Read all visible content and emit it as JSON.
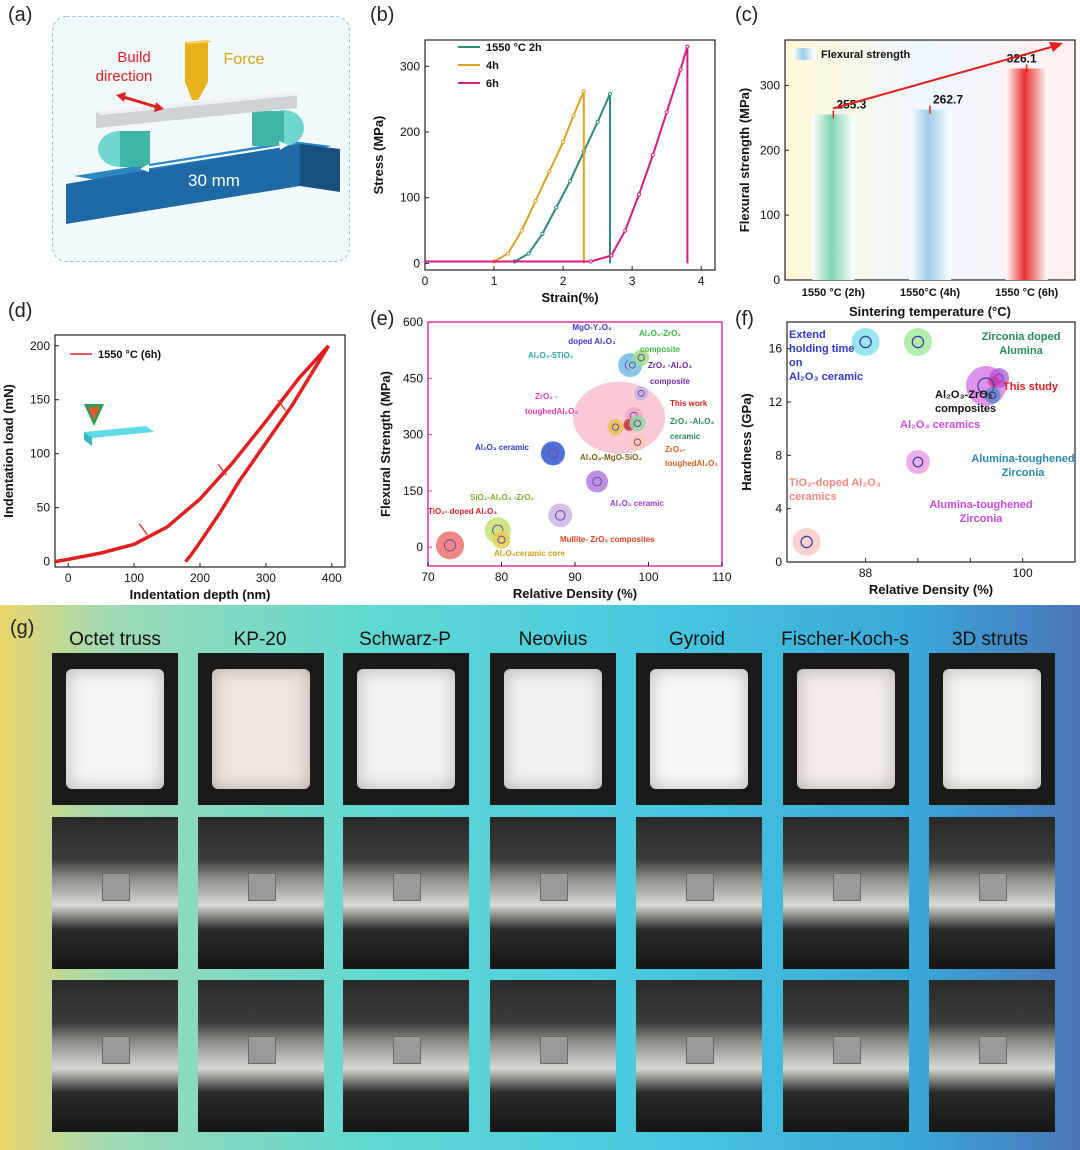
{
  "panel_labels": [
    "(a)",
    "(b)",
    "(c)",
    "(d)",
    "(e)",
    "(f)",
    "(g)"
  ],
  "panel_a": {
    "build_direction": [
      "Build",
      "direction"
    ],
    "force": "Force",
    "span": "30 mm"
  },
  "chart_data": [
    {
      "id": "b",
      "type": "line",
      "xlabel": "Strain(%)",
      "ylabel": "Stress (MPa)",
      "xlim": [
        0,
        4.2
      ],
      "ylim": [
        -10,
        340
      ],
      "xticks": [
        0,
        1,
        2,
        3,
        4
      ],
      "yticks": [
        0,
        100,
        200,
        300
      ],
      "series": [
        {
          "name": "1550 °C 2h",
          "color": "#2e8b7a",
          "x": [
            0,
            1.3,
            1.5,
            1.7,
            1.9,
            2.1,
            2.3,
            2.5,
            2.68,
            2.68
          ],
          "y": [
            3,
            3,
            15,
            45,
            85,
            125,
            170,
            215,
            258,
            0
          ]
        },
        {
          "name": "4h",
          "color": "#e0a020",
          "x": [
            0,
            1.0,
            1.2,
            1.4,
            1.6,
            1.8,
            2.0,
            2.15,
            2.3,
            2.3
          ],
          "y": [
            3,
            3,
            15,
            50,
            95,
            140,
            185,
            225,
            262,
            0
          ]
        },
        {
          "name": "6h",
          "color": "#d81b80",
          "x": [
            0,
            2.4,
            2.7,
            2.9,
            3.1,
            3.3,
            3.5,
            3.7,
            3.8,
            3.8
          ],
          "y": [
            3,
            3,
            12,
            50,
            105,
            165,
            230,
            295,
            330,
            0
          ]
        }
      ]
    },
    {
      "id": "c",
      "type": "bar",
      "legend": "Flexural strength",
      "xlabel": "Sintering temperature (°C)",
      "ylabel": "Flexural strength (MPa)",
      "categories": [
        "1550 °C (2h)",
        "1550°C (4h)",
        "1550 °C (6h)"
      ],
      "values": [
        255.3,
        262.7,
        326.1
      ],
      "value_labels": [
        "255.3",
        "262.7",
        "326.1"
      ],
      "ylim": [
        0,
        370
      ],
      "yticks": [
        0,
        100,
        200,
        300
      ],
      "colors": [
        "#7fd3b0",
        "#9ccde6",
        "#e8302c"
      ]
    },
    {
      "id": "d",
      "type": "line",
      "xlabel": "Indentation depth (nm)",
      "ylabel": "Indentation load (mN)",
      "legend": "1550 °C (6h)",
      "xlim": [
        -20,
        420
      ],
      "ylim": [
        -5,
        210
      ],
      "xticks": [
        0,
        100,
        200,
        300,
        400
      ],
      "yticks": [
        0,
        50,
        100,
        150,
        200
      ],
      "series": [
        {
          "name": "loading",
          "x": [
            -20,
            0,
            50,
            100,
            150,
            200,
            250,
            300,
            350,
            395
          ],
          "y": [
            0,
            2,
            8,
            16,
            32,
            58,
            92,
            130,
            170,
            200
          ]
        },
        {
          "name": "unloading",
          "x": [
            395,
            370,
            340,
            300,
            260,
            230,
            200,
            185,
            178
          ],
          "y": [
            200,
            175,
            145,
            110,
            75,
            45,
            18,
            5,
            0
          ]
        }
      ]
    },
    {
      "id": "e",
      "type": "scatter",
      "xlabel": "Relative Density (%)",
      "ylabel": "Flexural Strength (MPa)",
      "xlim": [
        70,
        110
      ],
      "ylim": [
        -50,
        600
      ],
      "xticks": [
        70,
        80,
        90,
        100,
        110
      ],
      "yticks": [
        0,
        150,
        300,
        450,
        600
      ],
      "points": [
        {
          "label": "MgO-Y2O3 doped Al2O3",
          "x": 97.5,
          "y": 485
        },
        {
          "label": "Al2O3-ZrO2 composite",
          "x": 99,
          "y": 505
        },
        {
          "label": "Al2O3-5TiO2",
          "x": 97.8,
          "y": 485
        },
        {
          "label": "ZrO2-Al2O3 composite",
          "x": 99,
          "y": 410
        },
        {
          "label": "ZrO2-toughed Al2O3",
          "x": 98,
          "y": 350
        },
        {
          "label": "This work",
          "x": 97.4,
          "y": 326
        },
        {
          "label": "ZrO2-Al2O3 ceramic",
          "x": 98.5,
          "y": 330
        },
        {
          "label": "ZrO2-toughed Al2O3",
          "x": 98.5,
          "y": 280
        },
        {
          "label": "Al2O3 ceramic",
          "x": 87,
          "y": 250
        },
        {
          "label": "Al2O3-MgO-SiO2",
          "x": 95.5,
          "y": 320
        },
        {
          "label": "Al2O3 ceramic",
          "x": 93,
          "y": 175
        },
        {
          "label": "SiO2-Al2O3-ZrO2",
          "x": 79.5,
          "y": 45
        },
        {
          "label": "Mullite-ZrO2 composites",
          "x": 88,
          "y": 85
        },
        {
          "label": "TiO2-doped Al2O3",
          "x": 73,
          "y": 5
        },
        {
          "label": "Al2O3 ceramic core",
          "x": 80,
          "y": 20
        }
      ]
    },
    {
      "id": "f",
      "type": "scatter",
      "xlabel": "Relative Density (%)",
      "ylabel": "Hardness (GPa)",
      "xlim": [
        82,
        104
      ],
      "ylim": [
        0,
        18
      ],
      "xticks": [
        88,
        92,
        96,
        100
      ],
      "xtick_labels": [
        "88",
        "",
        "",
        "100"
      ],
      "yticks": [
        0,
        4,
        8,
        12,
        16
      ],
      "points": [
        {
          "label": "Extend holding time on Al2O3 ceramic",
          "x": 88,
          "y": 16.5
        },
        {
          "label": "Al2O3-ZrO2 composites",
          "x": 92,
          "y": 16.5
        },
        {
          "label": "Zirconia doped Alumina",
          "x": 98.2,
          "y": 13.8
        },
        {
          "label": "This study",
          "x": 97.8,
          "y": 13.5
        },
        {
          "label": "Al2O3 ceramics",
          "x": 97.2,
          "y": 13.2
        },
        {
          "label": "Alumina-toughened Zirconia",
          "x": 97.7,
          "y": 12.5
        },
        {
          "label": "Alumina-toughened Zirconia",
          "x": 92,
          "y": 7.5
        },
        {
          "label": "TiO2-doped Al2O3 ceramics",
          "x": 83.5,
          "y": 1.5
        }
      ]
    }
  ],
  "panel_e_labels": {
    "mgo": [
      "MgO-Y₂O₃",
      "doped Al₂O₃"
    ],
    "alzr": [
      "Al₂O₃-ZrO₂",
      "composite"
    ],
    "al5ti": "Al₂O₃-5TiO₂",
    "zral": [
      "ZrO₂ -Al₂O₃",
      "composite"
    ],
    "zrt": [
      "ZrO₂ -",
      "toughedAl₂O₃"
    ],
    "thiswork": "This work",
    "zralc": [
      "ZrO₂ -Al₂O₃",
      "ceramic"
    ],
    "zrt2": [
      "ZrO₂-",
      "toughedAl₂O₃"
    ],
    "alcer": "Al₂O₃ ceramic",
    "almg": "Al₂O₃-MgO-SiO₂",
    "alcer2": "Al₂O₃ ceramic",
    "sialzr": "SiO₂-Al₂O₃ -ZrO₂",
    "tial": "TiO₂- doped Al₂O₃",
    "mullite": "Mullite- ZrO₂ composites",
    "core": "Al₂O₃ceramic core"
  },
  "panel_f_labels": {
    "extend": [
      "Extend",
      "holding time",
      "on",
      "Al₂O₃ ceramic"
    ],
    "alzr": [
      "Al₂O₃-ZrO₂",
      "composites"
    ],
    "zda": [
      "Zirconia doped",
      "Alumina"
    ],
    "study": "This study",
    "alcer": "Al₂O₃ ceramics",
    "atz1": [
      "Alumina-toughened",
      "Zirconia"
    ],
    "atz2": [
      "Alumina-toughened",
      "Zirconia"
    ],
    "tio2": [
      "TiO₂-doped Al₂O₃",
      "ceramics"
    ]
  },
  "panel_g": {
    "structures": [
      "Octet truss",
      "KP-20",
      "Schwarz-P",
      "Neovius",
      "Gyroid",
      "Fischer-Koch-s",
      "3D struts"
    ]
  }
}
